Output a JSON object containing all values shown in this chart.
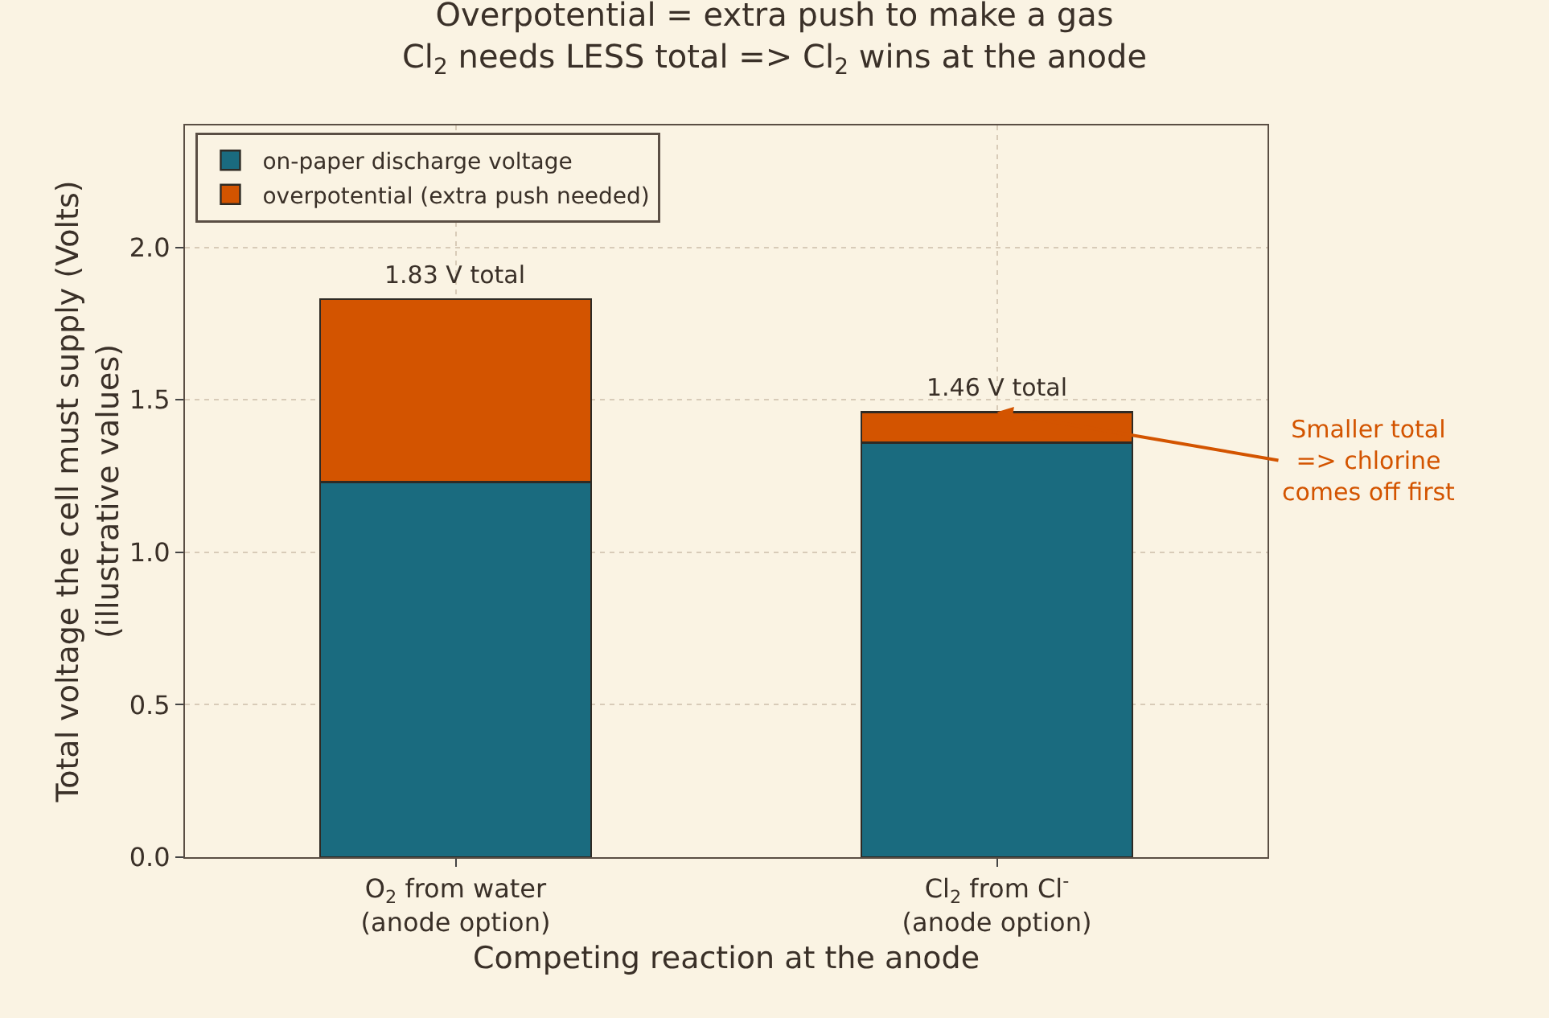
{
  "chart_data": {
    "type": "bar",
    "stacked": true,
    "title": "Overpotential = extra push to make a gas\nCl$_{2}$ needs LESS total => Cl$_{2}$ wins at the anode",
    "xlabel": "Competing reaction at the anode",
    "ylabel": "Total voltage the cell must supply (Volts)\n(illustrative values)",
    "categories": [
      "O$_{2}$ from water\n(anode option)",
      "Cl$_{2}$ from Cl$^{-}$\n(anode option)"
    ],
    "series": [
      {
        "name": "on-paper discharge voltage",
        "color": "#1a6b7f",
        "values": [
          1.23,
          1.36
        ]
      },
      {
        "name": "overpotential (extra push needed)",
        "color": "#d35400",
        "values": [
          0.6,
          0.1
        ]
      }
    ],
    "totals": [
      "1.83 V total",
      "1.46 V total"
    ],
    "annotations": [
      {
        "text": "Smaller total\n=> chlorine\ncomes off first",
        "x": "Cl$_{2}$ from Cl$^{-}$\n(anode option)",
        "y": 1.46
      }
    ],
    "ylim": [
      0,
      2.4
    ],
    "yticks": [
      {
        "value": 0,
        "label": "0.0"
      },
      0.5,
      {
        "value": 1,
        "label": "1.0"
      },
      1.5,
      {
        "value": 2,
        "label": "2.0"
      }
    ],
    "grid": true,
    "legend": "top left"
  }
}
